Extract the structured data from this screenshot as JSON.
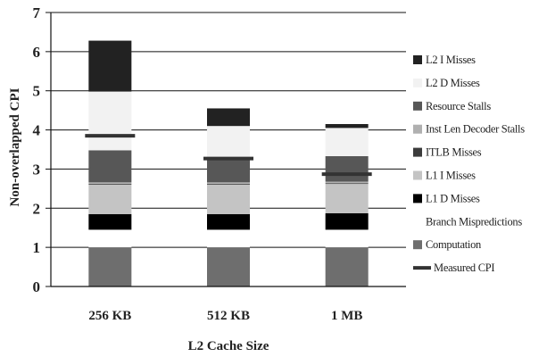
{
  "chart_data": {
    "type": "bar",
    "stacked": true,
    "title": "",
    "xlabel": "L2 Cache Size",
    "ylabel": "Non-overlapped CPI",
    "ylim": [
      0,
      7
    ],
    "yticks": [
      0,
      1,
      2,
      3,
      4,
      5,
      6,
      7
    ],
    "grid": true,
    "legend_position": "right",
    "categories": [
      "256 KB",
      "512 KB",
      "1 MB"
    ],
    "series": [
      {
        "name": "Computation",
        "color": "#6e6e6e",
        "values": [
          1.0,
          1.0,
          1.0
        ]
      },
      {
        "name": "Branch Mispredictions",
        "color": "#ffffff",
        "values": [
          0.45,
          0.45,
          0.45
        ]
      },
      {
        "name": "L1 D Misses",
        "color": "#000000",
        "values": [
          0.4,
          0.4,
          0.42
        ]
      },
      {
        "name": "L1 I Misses",
        "color": "#c4c4c4",
        "values": [
          0.75,
          0.75,
          0.75
        ]
      },
      {
        "name": "ITLB Misses",
        "color": "#3c3c3c",
        "values": [
          0.02,
          0.02,
          0.02
        ]
      },
      {
        "name": "Inst Len Decoder Stalls",
        "color": "#b0b0b0",
        "values": [
          0.04,
          0.04,
          0.04
        ]
      },
      {
        "name": "Resource Stalls",
        "color": "#575757",
        "values": [
          0.82,
          0.64,
          0.65
        ]
      },
      {
        "name": "L2 D Misses",
        "color": "#f2f2f2",
        "values": [
          1.5,
          0.8,
          0.72
        ]
      },
      {
        "name": "L2 I Misses",
        "color": "#222222",
        "values": [
          1.3,
          0.45,
          0.1
        ]
      }
    ],
    "measured": {
      "name": "Measured CPI",
      "color": "#333333",
      "values": [
        3.85,
        3.27,
        2.87
      ]
    },
    "legend_order": [
      "L2 I Misses",
      "L2 D Misses",
      "Resource Stalls",
      "Inst Len Decoder Stalls",
      "ITLB Misses",
      "L1 I Misses",
      "L1 D Misses",
      "Branch Mispredictions",
      "Computation",
      "Measured CPI"
    ]
  }
}
